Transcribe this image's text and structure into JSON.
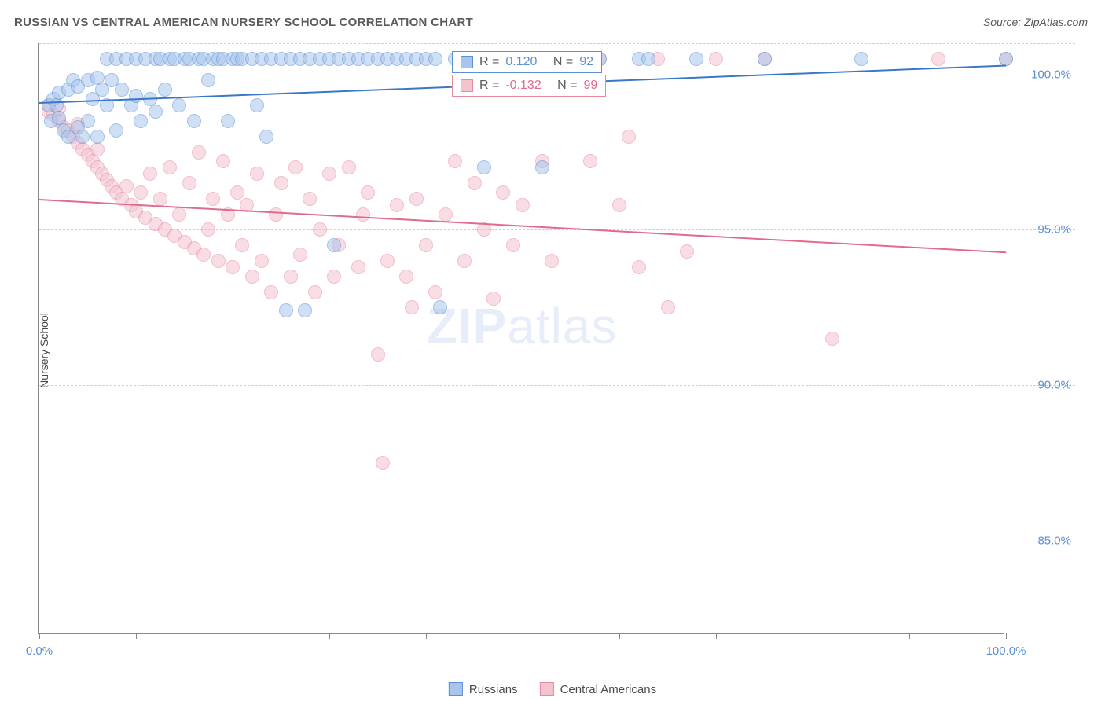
{
  "title": "RUSSIAN VS CENTRAL AMERICAN NURSERY SCHOOL CORRELATION CHART",
  "source": "Source: ZipAtlas.com",
  "y_axis_label": "Nursery School",
  "watermark_bold": "ZIP",
  "watermark_light": "atlas",
  "chart": {
    "type": "scatter",
    "background_color": "#ffffff",
    "grid_color": "#d0d0d0",
    "axis_color": "#888888",
    "xlim": [
      0,
      100
    ],
    "ylim": [
      82,
      101
    ],
    "x_ticks": [
      0,
      10,
      20,
      30,
      40,
      50,
      60,
      70,
      80,
      90,
      100
    ],
    "x_tick_labels": {
      "0": "0.0%",
      "100": "100.0%"
    },
    "y_ticks": [
      85,
      90,
      95,
      100
    ],
    "y_tick_labels": {
      "85": "85.0%",
      "90": "90.0%",
      "95": "95.0%",
      "100": "100.0%"
    },
    "point_radius": 9,
    "point_opacity": 0.55,
    "point_border_width": 1,
    "trend_line_width": 2,
    "title_fontsize": 15,
    "label_fontsize": 14,
    "tick_fontsize": 15,
    "tick_color": "#5b8fd6"
  },
  "series": {
    "russians": {
      "label": "Russians",
      "color_fill": "#a8c6ec",
      "color_border": "#5b8fd6",
      "R": "0.120",
      "N": "92",
      "trend": {
        "y_at_x0": 99.1,
        "y_at_x100": 100.3,
        "color": "#3a77c9"
      },
      "points": [
        [
          1,
          99.0
        ],
        [
          1.2,
          98.5
        ],
        [
          1.5,
          99.2
        ],
        [
          1.8,
          99.0
        ],
        [
          2,
          98.6
        ],
        [
          2,
          99.4
        ],
        [
          2.5,
          98.2
        ],
        [
          3,
          99.5
        ],
        [
          3,
          98.0
        ],
        [
          3.5,
          99.8
        ],
        [
          4,
          98.3
        ],
        [
          4,
          99.6
        ],
        [
          4.5,
          98.0
        ],
        [
          5,
          99.8
        ],
        [
          5,
          98.5
        ],
        [
          5.5,
          99.2
        ],
        [
          6,
          99.9
        ],
        [
          6,
          98.0
        ],
        [
          6.5,
          99.5
        ],
        [
          7,
          99.0
        ],
        [
          7,
          100.5
        ],
        [
          7.5,
          99.8
        ],
        [
          8,
          98.2
        ],
        [
          8,
          100.5
        ],
        [
          8.5,
          99.5
        ],
        [
          9,
          100.5
        ],
        [
          9.5,
          99.0
        ],
        [
          10,
          100.5
        ],
        [
          10,
          99.3
        ],
        [
          10.5,
          98.5
        ],
        [
          11,
          100.5
        ],
        [
          11.5,
          99.2
        ],
        [
          12,
          100.5
        ],
        [
          12,
          98.8
        ],
        [
          12.5,
          100.5
        ],
        [
          13,
          99.5
        ],
        [
          13.5,
          100.5
        ],
        [
          14,
          100.5
        ],
        [
          14.5,
          99.0
        ],
        [
          15,
          100.5
        ],
        [
          15.5,
          100.5
        ],
        [
          16,
          98.5
        ],
        [
          16.5,
          100.5
        ],
        [
          17,
          100.5
        ],
        [
          17.5,
          99.8
        ],
        [
          18,
          100.5
        ],
        [
          18.5,
          100.5
        ],
        [
          19,
          100.5
        ],
        [
          19.5,
          98.5
        ],
        [
          20,
          100.5
        ],
        [
          20.5,
          100.5
        ],
        [
          21,
          100.5
        ],
        [
          22,
          100.5
        ],
        [
          22.5,
          99.0
        ],
        [
          23,
          100.5
        ],
        [
          23.5,
          98.0
        ],
        [
          24,
          100.5
        ],
        [
          25,
          100.5
        ],
        [
          25.5,
          92.4
        ],
        [
          26,
          100.5
        ],
        [
          27,
          100.5
        ],
        [
          27.5,
          92.4
        ],
        [
          28,
          100.5
        ],
        [
          29,
          100.5
        ],
        [
          30,
          100.5
        ],
        [
          30.5,
          94.5
        ],
        [
          31,
          100.5
        ],
        [
          32,
          100.5
        ],
        [
          33,
          100.5
        ],
        [
          34,
          100.5
        ],
        [
          35,
          100.5
        ],
        [
          36,
          100.5
        ],
        [
          37,
          100.5
        ],
        [
          38,
          100.5
        ],
        [
          39,
          100.5
        ],
        [
          40,
          100.5
        ],
        [
          41,
          100.5
        ],
        [
          41.5,
          92.5
        ],
        [
          43,
          100.5
        ],
        [
          44,
          100.5
        ],
        [
          46,
          97.0
        ],
        [
          48,
          100.5
        ],
        [
          50,
          100.5
        ],
        [
          52,
          97.0
        ],
        [
          55,
          100.5
        ],
        [
          58,
          100.5
        ],
        [
          62,
          100.5
        ],
        [
          63,
          100.5
        ],
        [
          68,
          100.5
        ],
        [
          75,
          100.5
        ],
        [
          85,
          100.5
        ],
        [
          100,
          100.5
        ]
      ]
    },
    "central_americans": {
      "label": "Central Americans",
      "color_fill": "#f4c4ce",
      "color_border": "#e68aa0",
      "R": "-0.132",
      "N": "99",
      "trend": {
        "y_at_x0": 96.0,
        "y_at_x100": 94.3,
        "color": "#e06b8a"
      },
      "points": [
        [
          1,
          99.0
        ],
        [
          1,
          98.8
        ],
        [
          1.5,
          98.7
        ],
        [
          2,
          98.5
        ],
        [
          2,
          98.9
        ],
        [
          2.5,
          98.3
        ],
        [
          3,
          98.2
        ],
        [
          3.5,
          98.0
        ],
        [
          4,
          97.8
        ],
        [
          4,
          98.4
        ],
        [
          4.5,
          97.6
        ],
        [
          5,
          97.4
        ],
        [
          5.5,
          97.2
        ],
        [
          6,
          97.0
        ],
        [
          6,
          97.6
        ],
        [
          6.5,
          96.8
        ],
        [
          7,
          96.6
        ],
        [
          7.5,
          96.4
        ],
        [
          8,
          96.2
        ],
        [
          8.5,
          96.0
        ],
        [
          9,
          96.4
        ],
        [
          9.5,
          95.8
        ],
        [
          10,
          95.6
        ],
        [
          10.5,
          96.2
        ],
        [
          11,
          95.4
        ],
        [
          11.5,
          96.8
        ],
        [
          12,
          95.2
        ],
        [
          12.5,
          96.0
        ],
        [
          13,
          95.0
        ],
        [
          13.5,
          97.0
        ],
        [
          14,
          94.8
        ],
        [
          14.5,
          95.5
        ],
        [
          15,
          94.6
        ],
        [
          15.5,
          96.5
        ],
        [
          16,
          94.4
        ],
        [
          16.5,
          97.5
        ],
        [
          17,
          94.2
        ],
        [
          17.5,
          95.0
        ],
        [
          18,
          96.0
        ],
        [
          18.5,
          94.0
        ],
        [
          19,
          97.2
        ],
        [
          19.5,
          95.5
        ],
        [
          20,
          93.8
        ],
        [
          20.5,
          96.2
        ],
        [
          21,
          94.5
        ],
        [
          21.5,
          95.8
        ],
        [
          22,
          93.5
        ],
        [
          22.5,
          96.8
        ],
        [
          23,
          94.0
        ],
        [
          24,
          93.0
        ],
        [
          24.5,
          95.5
        ],
        [
          25,
          96.5
        ],
        [
          26,
          93.5
        ],
        [
          26.5,
          97.0
        ],
        [
          27,
          94.2
        ],
        [
          28,
          96.0
        ],
        [
          28.5,
          93.0
        ],
        [
          29,
          95.0
        ],
        [
          30,
          96.8
        ],
        [
          30.5,
          93.5
        ],
        [
          31,
          94.5
        ],
        [
          32,
          97.0
        ],
        [
          33,
          93.8
        ],
        [
          33.5,
          95.5
        ],
        [
          34,
          96.2
        ],
        [
          35,
          91.0
        ],
        [
          35.5,
          87.5
        ],
        [
          36,
          94.0
        ],
        [
          37,
          95.8
        ],
        [
          38,
          93.5
        ],
        [
          38.5,
          92.5
        ],
        [
          39,
          96.0
        ],
        [
          40,
          94.5
        ],
        [
          41,
          93.0
        ],
        [
          42,
          95.5
        ],
        [
          43,
          97.2
        ],
        [
          44,
          94.0
        ],
        [
          45,
          96.5
        ],
        [
          46,
          95.0
        ],
        [
          47,
          92.8
        ],
        [
          48,
          96.2
        ],
        [
          49,
          94.5
        ],
        [
          50,
          95.8
        ],
        [
          52,
          97.2
        ],
        [
          53,
          94.0
        ],
        [
          55,
          100.5
        ],
        [
          57,
          97.2
        ],
        [
          58,
          100.5
        ],
        [
          60,
          95.8
        ],
        [
          61,
          98.0
        ],
        [
          62,
          93.8
        ],
        [
          64,
          100.5
        ],
        [
          65,
          92.5
        ],
        [
          67,
          94.3
        ],
        [
          70,
          100.5
        ],
        [
          75,
          100.5
        ],
        [
          82,
          91.5
        ],
        [
          93,
          100.5
        ],
        [
          100,
          100.5
        ]
      ]
    }
  },
  "stat_labels": {
    "R": "R =",
    "N": "N ="
  },
  "bottom_legend": [
    "russians",
    "central_americans"
  ]
}
